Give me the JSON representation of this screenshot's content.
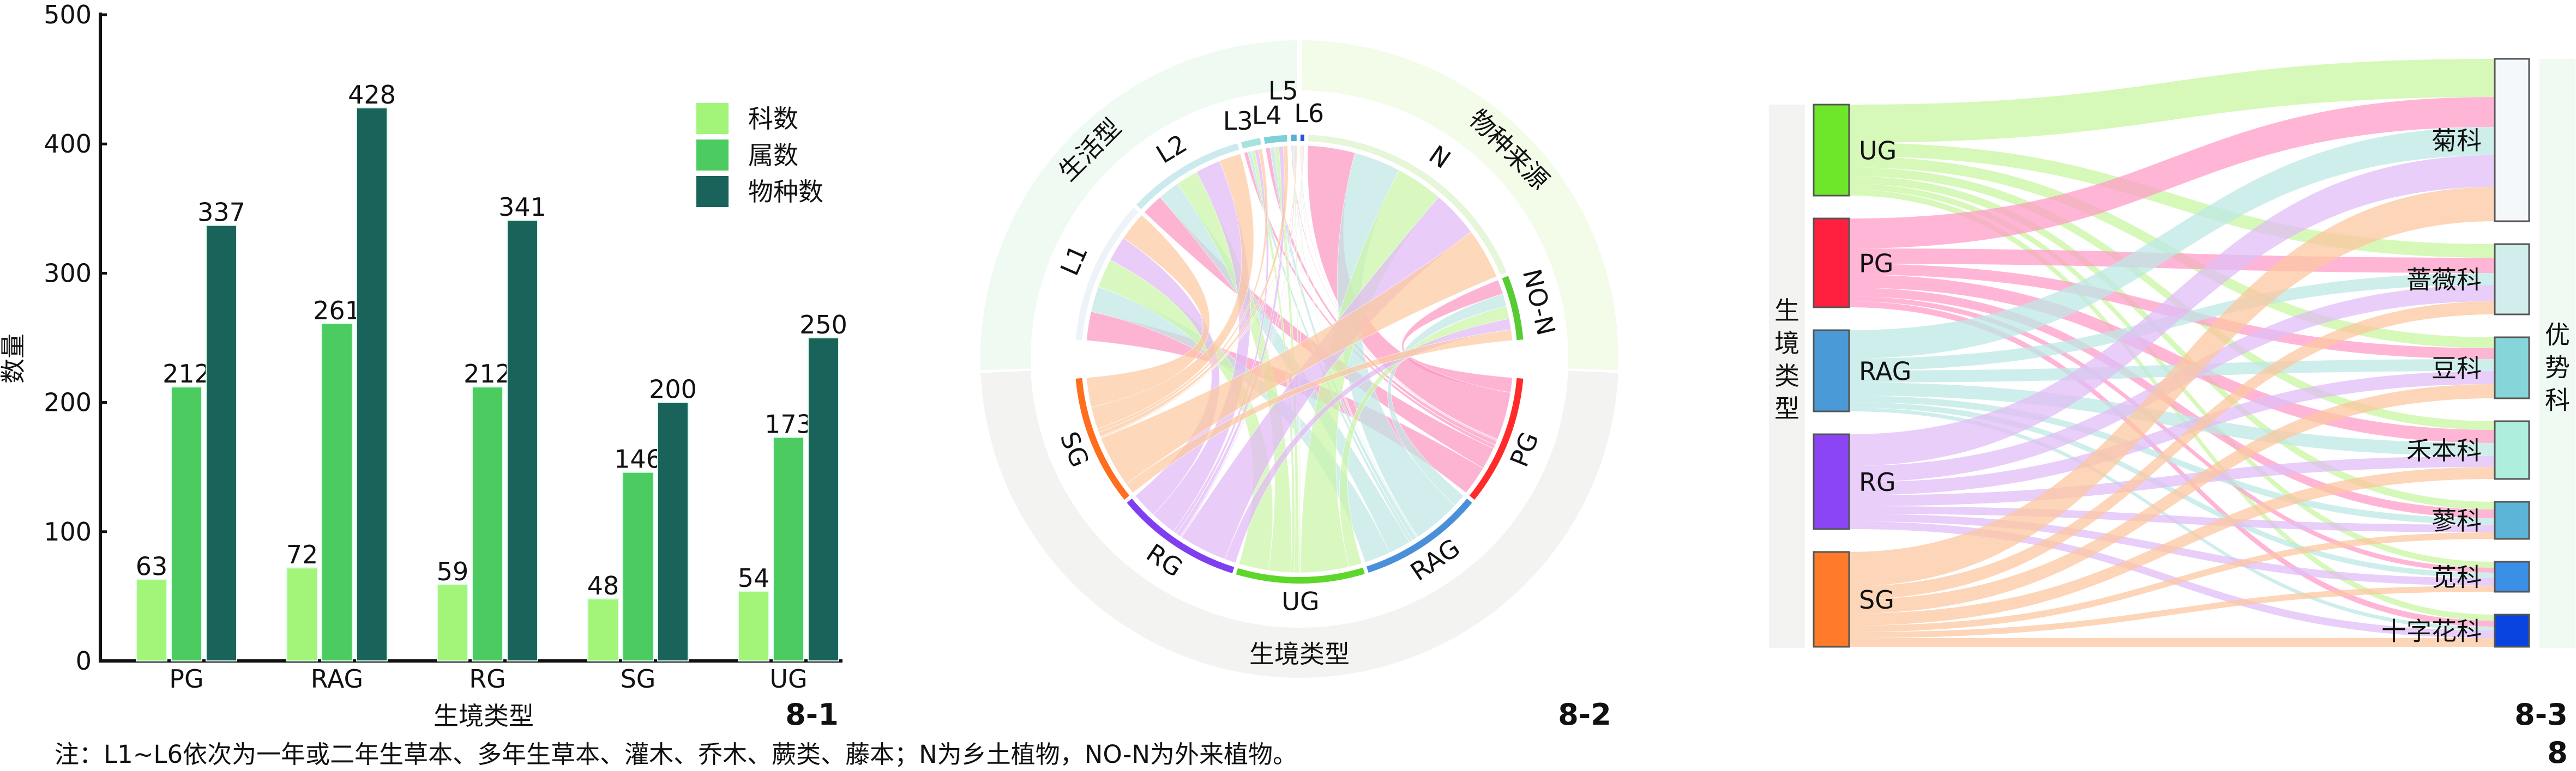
{
  "footnote": "注：L1~L6依次为一年或二年生草本、多年生草本、灌木、乔木、蕨类、藤本；N为乡土植物，NO-N为外来植物。",
  "panel_labels": {
    "p1": "8-1",
    "p2": "8-2",
    "p3": "8-3",
    "figure": "8"
  },
  "chart_data": [
    {
      "type": "bar",
      "xlabel": "生境类型",
      "ylabel": "数量",
      "ylim": [
        0,
        500
      ],
      "yticks": [
        0,
        100,
        200,
        300,
        400,
        500
      ],
      "categories": [
        "PG",
        "RAG",
        "RG",
        "SG",
        "UG"
      ],
      "legend_position": "top-right",
      "series": [
        {
          "name": "科数",
          "color": "#a3f57a",
          "values": [
            63,
            72,
            59,
            48,
            54
          ]
        },
        {
          "name": "属数",
          "color": "#4ccc60",
          "values": [
            212,
            261,
            212,
            146,
            173
          ]
        },
        {
          "name": "物种数",
          "color": "#1a635a",
          "values": [
            337,
            428,
            341,
            200,
            250
          ]
        }
      ]
    },
    {
      "type": "chord",
      "sectors": [
        {
          "label": "生活型",
          "color": "#eefaf2"
        },
        {
          "label": "物种来源",
          "color": "#f3fbe9"
        },
        {
          "label": "生境类型",
          "color": "#f3f4f1"
        }
      ],
      "habitats": [
        {
          "label": "PG",
          "color": "#ff2a2a",
          "ribbon": "#fc97c2"
        },
        {
          "label": "RAG",
          "color": "#4a90d9",
          "ribbon": "#bfe6e4"
        },
        {
          "label": "UG",
          "color": "#5ed62a",
          "ribbon": "#c9f5a8"
        },
        {
          "label": "RG",
          "color": "#7f3ff0",
          "ribbon": "#e2b8f5"
        },
        {
          "label": "SG",
          "color": "#ff6d1f",
          "ribbon": "#fcc9a0"
        }
      ],
      "targets": [
        {
          "label": "L1",
          "color": "#eef3fa"
        },
        {
          "label": "L2",
          "color": "#cbeaee"
        },
        {
          "label": "L3",
          "color": "#a7e2df"
        },
        {
          "label": "L4",
          "color": "#80d0da"
        },
        {
          "label": "L5",
          "color": "#5aaed6"
        },
        {
          "label": "L6",
          "color": "#2255dd"
        },
        {
          "label": "N",
          "color": "#e6f6d8"
        },
        {
          "label": "NO-N",
          "color": "#55cc33"
        }
      ],
      "matrix": [
        [
          8,
          6,
          1,
          1.2,
          0.3,
          0.2,
          13,
          4
        ],
        [
          7,
          6,
          1,
          1.2,
          0.3,
          0.2,
          13,
          3.5
        ],
        [
          8,
          6,
          1,
          1.2,
          0.3,
          0.2,
          13,
          3.5
        ],
        [
          7,
          7,
          1,
          1.2,
          0.3,
          0.2,
          13,
          3
        ],
        [
          8,
          6,
          1,
          1.2,
          0.3,
          0.2,
          14,
          3
        ]
      ]
    },
    {
      "type": "sankey",
      "left_title": "生境类型",
      "right_title": "优势科",
      "sources": [
        {
          "label": "UG",
          "color": "#6ee62a",
          "link": "#c8f5a0"
        },
        {
          "label": "PG",
          "color": "#ff2040",
          "link": "#ff9ec8"
        },
        {
          "label": "RAG",
          "color": "#4a9ad8",
          "link": "#bde8e6"
        },
        {
          "label": "RG",
          "color": "#8c45f5",
          "link": "#e0bdf5"
        },
        {
          "label": "SG",
          "color": "#ff7a2a",
          "link": "#fcc7a0"
        }
      ],
      "targets": [
        {
          "label": "菊科",
          "color": "#f5f8fb"
        },
        {
          "label": "蔷薇科",
          "color": "#d2eeec"
        },
        {
          "label": "豆科",
          "color": "#86d6d9"
        },
        {
          "label": "禾本科",
          "color": "#aeeedd"
        },
        {
          "label": "蓼科",
          "color": "#5cb4d6"
        },
        {
          "label": "苋科",
          "color": "#3a8fe6"
        },
        {
          "label": "十字花科",
          "color": "#0a44e0"
        }
      ],
      "matrix": [
        [
          70,
          25,
          20,
          16,
          14,
          11,
          11
        ],
        [
          55,
          28,
          20,
          24,
          16,
          9,
          11
        ],
        [
          52,
          22,
          22,
          24,
          12,
          10,
          7
        ],
        [
          58,
          30,
          24,
          20,
          14,
          14,
          14
        ],
        [
          63,
          24,
          26,
          22,
          12,
          11,
          16
        ]
      ]
    }
  ]
}
